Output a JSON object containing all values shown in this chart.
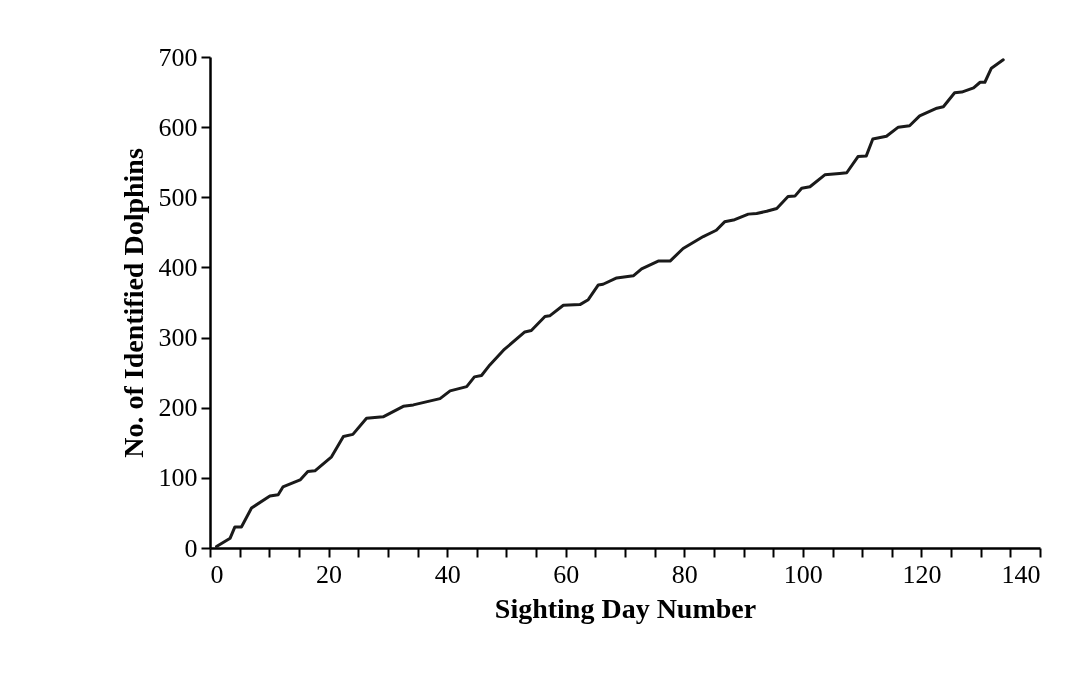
{
  "chart_data": {
    "type": "line",
    "xlabel": "Sighting Day Number",
    "ylabel": "No. of Identified Dolphins",
    "xlim": [
      0,
      140
    ],
    "ylim": [
      0,
      700
    ],
    "xticks": [
      0,
      {
        "value": 5,
        "label": null
      },
      {
        "value": 10,
        "label": null
      },
      {
        "value": 15,
        "label": null
      },
      20,
      {
        "value": 25,
        "label": null
      },
      {
        "value": 30,
        "label": null
      },
      {
        "value": 35,
        "label": null
      },
      40,
      {
        "value": 45,
        "label": null
      },
      {
        "value": 50,
        "label": null
      },
      {
        "value": 55,
        "label": null
      },
      60,
      {
        "value": 65,
        "label": null
      },
      {
        "value": 70,
        "label": null
      },
      {
        "value": 75,
        "label": null
      },
      80,
      {
        "value": 85,
        "label": null
      },
      {
        "value": 90,
        "label": null
      },
      {
        "value": 95,
        "label": null
      },
      100,
      {
        "value": 105,
        "label": null
      },
      {
        "value": 110,
        "label": null
      },
      {
        "value": 115,
        "label": null
      },
      120,
      {
        "value": 125,
        "label": null
      },
      {
        "value": 130,
        "label": null
      },
      {
        "value": 135,
        "label": null
      },
      140
    ],
    "yticks": [
      0,
      100,
      200,
      300,
      400,
      500,
      600,
      700
    ],
    "grid": false,
    "marker": "none",
    "line_style": "solid",
    "series": [
      {
        "color": "#1a1a1a",
        "x": [
          1.1,
          3.4,
          4.2,
          5.3,
          7.0,
          10.1,
          11.5,
          12.3,
          15.2,
          16.5,
          17.7,
          20.5,
          22.5,
          24.1,
          26.4,
          29.2,
          32.6,
          34.3,
          38.8,
          40.5,
          43.3,
          44.6,
          45.8,
          47.2,
          49.5,
          53.1,
          54.2,
          56.5,
          57.3,
          59.6,
          62.4,
          63.8,
          65.5,
          66.3,
          68.6,
          71.4,
          72.8,
          75.6,
          77.6,
          79.8,
          83.2,
          85.4,
          86.8,
          88.5,
          90.8,
          92.2,
          93.9,
          95.6,
          97.5,
          98.7,
          99.8,
          101.2,
          103.7,
          106.2,
          107.4,
          109.3,
          110.7,
          111.8,
          114.1,
          116.1,
          118.0,
          119.7,
          122.6,
          123.7,
          125.6,
          126.8,
          128.8,
          129.9,
          130.7,
          131.8,
          133.8
        ],
        "values": [
          2,
          14,
          30,
          30,
          57,
          74,
          76,
          87,
          97,
          109,
          110,
          130,
          159,
          162,
          185,
          187,
          202,
          204,
          213,
          224,
          230,
          244,
          246,
          261,
          282,
          308,
          310,
          330,
          331,
          346,
          347,
          354,
          375,
          376,
          385,
          388,
          398,
          409,
          409,
          427,
          444,
          453,
          465,
          468,
          476,
          477,
          480,
          484,
          501,
          502,
          513,
          515,
          532,
          534,
          535,
          558,
          559,
          583,
          587,
          600,
          602,
          616,
          627,
          629,
          649,
          650,
          656,
          664,
          664,
          684,
          696
        ]
      }
    ]
  }
}
